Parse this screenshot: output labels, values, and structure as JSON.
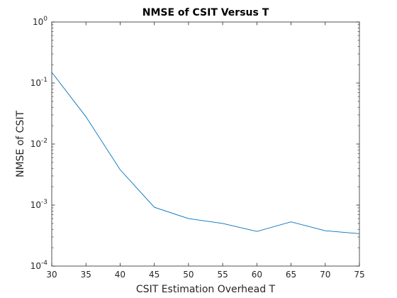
{
  "chart_data": {
    "type": "line",
    "title": "NMSE of CSIT Versus T",
    "xlabel": "CSIT Estimation Overhead T",
    "ylabel": "NMSE of CSIT",
    "x": [
      30,
      35,
      40,
      45,
      50,
      55,
      60,
      65,
      70,
      75
    ],
    "series": [
      {
        "values": [
          0.15,
          0.028,
          0.0038,
          0.00092,
          0.0006,
          0.0005,
          0.00037,
          0.00053,
          0.00038,
          0.00034
        ],
        "color": "#0072BD"
      }
    ],
    "xlim": [
      30,
      75
    ],
    "ylim": [
      0.0001,
      1
    ],
    "yscale": "log",
    "xticks": [
      "30",
      "35",
      "40",
      "45",
      "50",
      "55",
      "60",
      "65",
      "70",
      "75"
    ],
    "yticks": [
      {
        "base": "10",
        "exp": "0"
      },
      {
        "base": "10",
        "exp": "-1"
      },
      {
        "base": "10",
        "exp": "-2"
      },
      {
        "base": "10",
        "exp": "-3"
      },
      {
        "base": "10",
        "exp": "-4"
      }
    ],
    "grid": false
  }
}
